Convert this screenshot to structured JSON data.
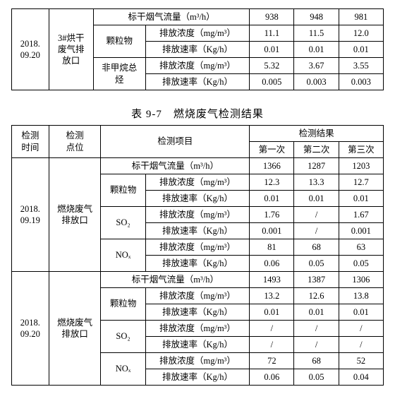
{
  "table1": {
    "date": "2018.\n09.20",
    "point": "3#烘干\n废气排\n放口",
    "row_flow": {
      "param": "标干烟气流量（m³/h）",
      "v": [
        "938",
        "948",
        "981"
      ]
    },
    "pm": {
      "group": "颗粒物",
      "conc": {
        "param": "排放浓度（mg/m³）",
        "v": [
          "11.1",
          "11.5",
          "12.0"
        ]
      },
      "rate": {
        "param": "排放速率（Kg/h）",
        "v": [
          "0.01",
          "0.01",
          "0.01"
        ]
      }
    },
    "nmhc": {
      "group": "非甲烷总\n烃",
      "conc": {
        "param": "排放浓度（mg/m³）",
        "v": [
          "5.32",
          "3.67",
          "3.55"
        ]
      },
      "rate": {
        "param": "排放速率（Kg/h）",
        "v": [
          "0.005",
          "0.003",
          "0.003"
        ]
      }
    }
  },
  "caption": "表 9-7　燃烧废气检测结果",
  "table2": {
    "headers": {
      "time": "检测\n时间",
      "point": "检测\n点位",
      "item": "检测项目",
      "result": "检测结果",
      "r1": "第一次",
      "r2": "第二次",
      "r3": "第三次"
    },
    "sections": [
      {
        "date": "2018.\n09.19",
        "point": "燃烧废气\n排放口",
        "flow": {
          "param": "标干烟气流量（m³/h）",
          "v": [
            "1366",
            "1287",
            "1203"
          ]
        },
        "groups": [
          {
            "name": "颗粒物",
            "conc": {
              "param": "排放浓度（mg/m³）",
              "v": [
                "12.3",
                "13.3",
                "12.7"
              ]
            },
            "rate": {
              "param": "排放速率（Kg/h）",
              "v": [
                "0.01",
                "0.01",
                "0.01"
              ]
            }
          },
          {
            "name": "SO₂",
            "conc": {
              "param": "排放浓度（mg/m³）",
              "v": [
                "1.76",
                "/",
                "1.67"
              ]
            },
            "rate": {
              "param": "排放速率（Kg/h）",
              "v": [
                "0.001",
                "/",
                "0.001"
              ]
            }
          },
          {
            "name": "NOₓ",
            "conc": {
              "param": "排放浓度（mg/m³）",
              "v": [
                "81",
                "68",
                "63"
              ]
            },
            "rate": {
              "param": "排放速率（Kg/h）",
              "v": [
                "0.06",
                "0.05",
                "0.05"
              ]
            }
          }
        ]
      },
      {
        "date": "2018.\n09.20",
        "point": "燃烧废气\n排放口",
        "flow": {
          "param": "标干烟气流量（m³/h）",
          "v": [
            "1493",
            "1387",
            "1306"
          ]
        },
        "groups": [
          {
            "name": "颗粒物",
            "conc": {
              "param": "排放浓度（mg/m³）",
              "v": [
                "13.2",
                "12.6",
                "13.8"
              ]
            },
            "rate": {
              "param": "排放速率（Kg/h）",
              "v": [
                "0.01",
                "0.01",
                "0.01"
              ]
            }
          },
          {
            "name": "SO₂",
            "conc": {
              "param": "排放浓度（mg/m³）",
              "v": [
                "/",
                "/",
                "/"
              ]
            },
            "rate": {
              "param": "排放速率（Kg/h）",
              "v": [
                "/",
                "/",
                "/"
              ]
            }
          },
          {
            "name": "NOₓ",
            "conc": {
              "param": "排放浓度（mg/m³）",
              "v": [
                "72",
                "68",
                "52"
              ]
            },
            "rate": {
              "param": "排放速率（Kg/h）",
              "v": [
                "0.06",
                "0.05",
                "0.04"
              ]
            }
          }
        ]
      }
    ]
  }
}
